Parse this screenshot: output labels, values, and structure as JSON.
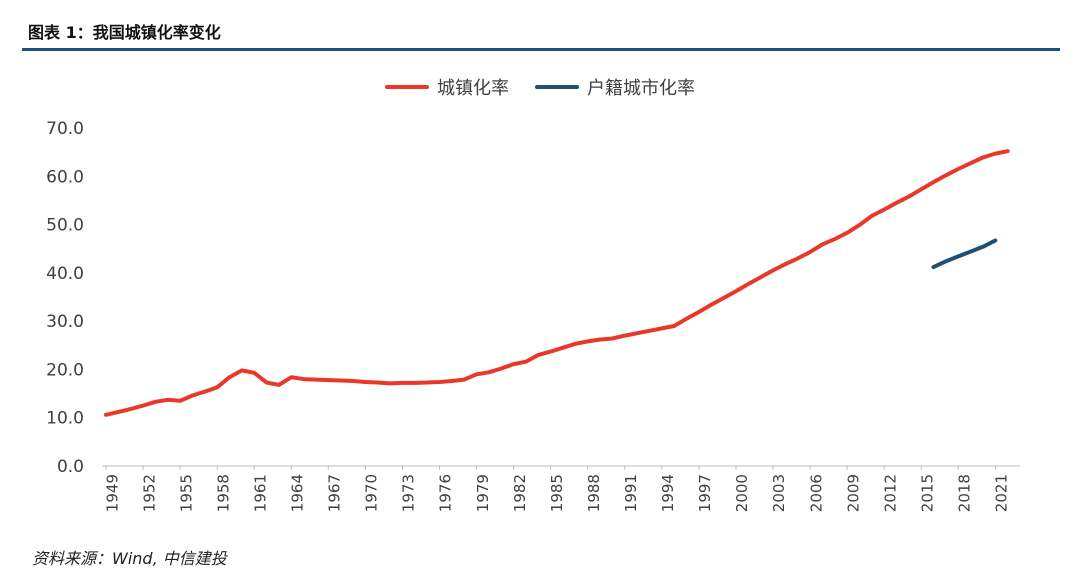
{
  "figure": {
    "title": "图表 1：我国城镇化率变化",
    "source": "资料来源：Wind, 中信建投"
  },
  "chart_data": {
    "type": "line",
    "title": "",
    "xlabel": "",
    "ylabel": "",
    "ylim": [
      0,
      70
    ],
    "yticks": [
      "0.0",
      "10.0",
      "20.0",
      "30.0",
      "40.0",
      "50.0",
      "60.0",
      "70.0"
    ],
    "xticks": [
      "1949",
      "1952",
      "1955",
      "1958",
      "1961",
      "1964",
      "1967",
      "1970",
      "1973",
      "1976",
      "1979",
      "1982",
      "1985",
      "1988",
      "1991",
      "1994",
      "1997",
      "2000",
      "2003",
      "2006",
      "2009",
      "2012",
      "2015",
      "2018",
      "2021"
    ],
    "grid": false,
    "legend_position": "top-center",
    "series": [
      {
        "name": "城镇化率",
        "color": "#e8382a",
        "x": [
          1949,
          1950,
          1951,
          1952,
          1953,
          1954,
          1955,
          1956,
          1957,
          1958,
          1959,
          1960,
          1961,
          1962,
          1963,
          1964,
          1965,
          1966,
          1967,
          1968,
          1969,
          1970,
          1971,
          1972,
          1973,
          1974,
          1975,
          1976,
          1977,
          1978,
          1979,
          1980,
          1981,
          1982,
          1983,
          1984,
          1985,
          1986,
          1987,
          1988,
          1989,
          1990,
          1991,
          1992,
          1993,
          1994,
          1995,
          1996,
          1997,
          1998,
          1999,
          2000,
          2001,
          2002,
          2003,
          2004,
          2005,
          2006,
          2007,
          2008,
          2009,
          2010,
          2011,
          2012,
          2013,
          2014,
          2015,
          2016,
          2017,
          2018,
          2019,
          2020,
          2021,
          2022
        ],
        "values": [
          10.6,
          11.2,
          11.8,
          12.5,
          13.3,
          13.7,
          13.5,
          14.6,
          15.4,
          16.3,
          18.4,
          19.8,
          19.3,
          17.3,
          16.8,
          18.4,
          18.0,
          17.9,
          17.8,
          17.7,
          17.6,
          17.4,
          17.3,
          17.1,
          17.2,
          17.2,
          17.3,
          17.4,
          17.6,
          17.9,
          19.0,
          19.4,
          20.2,
          21.1,
          21.6,
          23.0,
          23.7,
          24.5,
          25.3,
          25.8,
          26.2,
          26.4,
          27.0,
          27.5,
          28.0,
          28.5,
          29.0,
          30.5,
          31.9,
          33.4,
          34.8,
          36.2,
          37.7,
          39.1,
          40.5,
          41.8,
          43.0,
          44.3,
          45.9,
          47.0,
          48.3,
          49.9,
          51.8,
          53.1,
          54.5,
          55.8,
          57.3,
          58.8,
          60.2,
          61.5,
          62.7,
          63.9,
          64.7,
          65.2
        ]
      },
      {
        "name": "户籍城市化率",
        "color": "#1f4e79",
        "x": [
          2016,
          2017,
          2018,
          2019,
          2020,
          2021
        ],
        "values": [
          41.2,
          42.4,
          43.4,
          44.4,
          45.4,
          46.7
        ]
      }
    ]
  }
}
